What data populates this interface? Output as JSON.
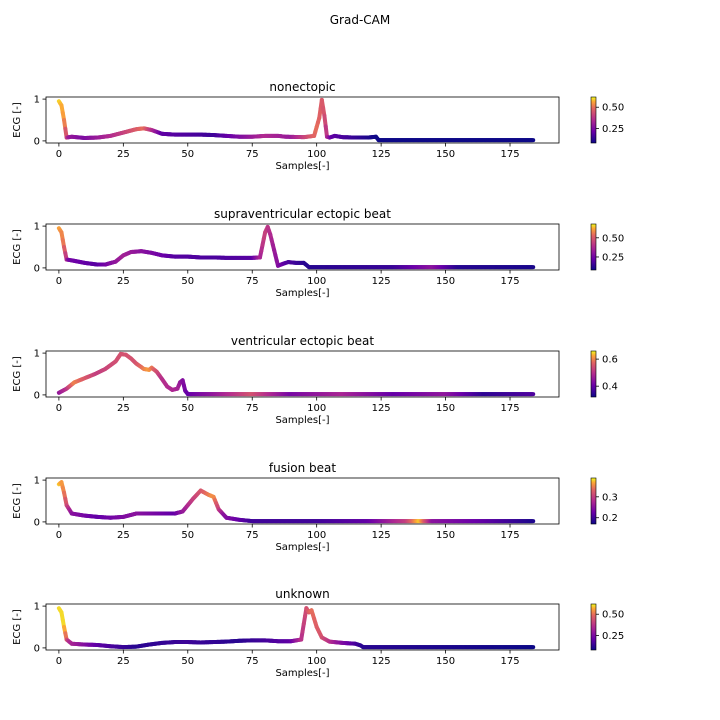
{
  "figure": {
    "suptitle": "Grad-CAM"
  },
  "chart_data": [
    {
      "type": "line",
      "title": "nonectopic",
      "xlabel": "Samples[-]",
      "ylabel": "ECG [-]",
      "xlim": [
        -5,
        194
      ],
      "ylim": [
        -0.05,
        1.05
      ],
      "xticks": [
        0,
        25,
        50,
        75,
        100,
        125,
        150,
        175
      ],
      "yticks": [
        0,
        1
      ],
      "colorbar": {
        "range": [
          0.08,
          0.62
        ],
        "ticks": [
          0.25,
          0.5
        ],
        "labels": [
          "0.25",
          "0.50"
        ]
      },
      "points": [
        [
          0,
          0.95
        ],
        [
          1,
          0.85
        ],
        [
          2,
          0.5
        ],
        [
          3,
          0.08
        ],
        [
          5,
          0.1
        ],
        [
          10,
          0.07
        ],
        [
          15,
          0.08
        ],
        [
          20,
          0.12
        ],
        [
          25,
          0.2
        ],
        [
          30,
          0.28
        ],
        [
          33,
          0.3
        ],
        [
          36,
          0.26
        ],
        [
          40,
          0.17
        ],
        [
          45,
          0.15
        ],
        [
          50,
          0.15
        ],
        [
          55,
          0.15
        ],
        [
          60,
          0.14
        ],
        [
          65,
          0.12
        ],
        [
          70,
          0.1
        ],
        [
          75,
          0.1
        ],
        [
          80,
          0.12
        ],
        [
          85,
          0.12
        ],
        [
          88,
          0.1
        ],
        [
          95,
          0.09
        ],
        [
          99,
          0.12
        ],
        [
          101,
          0.55
        ],
        [
          102,
          0.98
        ],
        [
          103,
          0.6
        ],
        [
          104,
          0.1
        ],
        [
          105,
          0.08
        ],
        [
          107,
          0.12
        ],
        [
          110,
          0.09
        ],
        [
          115,
          0.08
        ],
        [
          120,
          0.08
        ],
        [
          123,
          0.1
        ],
        [
          124,
          0.02
        ],
        [
          184,
          0.02
        ]
      ],
      "attribution": [
        [
          0,
          0.6
        ],
        [
          2,
          0.55
        ],
        [
          4,
          0.3
        ],
        [
          10,
          0.25
        ],
        [
          25,
          0.4
        ],
        [
          33,
          0.5
        ],
        [
          40,
          0.2
        ],
        [
          60,
          0.15
        ],
        [
          80,
          0.35
        ],
        [
          90,
          0.3
        ],
        [
          100,
          0.5
        ],
        [
          103,
          0.45
        ],
        [
          106,
          0.2
        ],
        [
          118,
          0.12
        ],
        [
          124,
          0.08
        ],
        [
          184,
          0.08
        ]
      ]
    },
    {
      "type": "line",
      "title": "supraventricular ectopic beat",
      "xlabel": "Samples[-]",
      "ylabel": "ECG [-]",
      "xlim": [
        -5,
        194
      ],
      "ylim": [
        -0.05,
        1.05
      ],
      "xticks": [
        0,
        25,
        50,
        75,
        100,
        125,
        150,
        175
      ],
      "yticks": [
        0,
        1
      ],
      "colorbar": {
        "range": [
          0.08,
          0.68
        ],
        "ticks": [
          0.25,
          0.5
        ],
        "labels": [
          "0.25",
          "0.50"
        ]
      },
      "points": [
        [
          0,
          0.95
        ],
        [
          1,
          0.85
        ],
        [
          2,
          0.5
        ],
        [
          3,
          0.2
        ],
        [
          5,
          0.18
        ],
        [
          10,
          0.12
        ],
        [
          15,
          0.08
        ],
        [
          18,
          0.08
        ],
        [
          22,
          0.15
        ],
        [
          25,
          0.3
        ],
        [
          28,
          0.38
        ],
        [
          32,
          0.4
        ],
        [
          36,
          0.36
        ],
        [
          40,
          0.3
        ],
        [
          45,
          0.27
        ],
        [
          50,
          0.27
        ],
        [
          55,
          0.25
        ],
        [
          60,
          0.25
        ],
        [
          65,
          0.24
        ],
        [
          70,
          0.24
        ],
        [
          75,
          0.24
        ],
        [
          78,
          0.25
        ],
        [
          80,
          0.85
        ],
        [
          81,
          0.98
        ],
        [
          82,
          0.8
        ],
        [
          84,
          0.3
        ],
        [
          85,
          0.05
        ],
        [
          87,
          0.1
        ],
        [
          89,
          0.14
        ],
        [
          92,
          0.12
        ],
        [
          95,
          0.12
        ],
        [
          97,
          0.02
        ],
        [
          184,
          0.02
        ]
      ],
      "attribution": [
        [
          0,
          0.62
        ],
        [
          2,
          0.55
        ],
        [
          4,
          0.25
        ],
        [
          15,
          0.2
        ],
        [
          25,
          0.35
        ],
        [
          32,
          0.3
        ],
        [
          45,
          0.2
        ],
        [
          60,
          0.18
        ],
        [
          75,
          0.2
        ],
        [
          80,
          0.45
        ],
        [
          83,
          0.35
        ],
        [
          88,
          0.2
        ],
        [
          96,
          0.12
        ],
        [
          130,
          0.15
        ],
        [
          145,
          0.3
        ],
        [
          155,
          0.12
        ],
        [
          184,
          0.1
        ]
      ]
    },
    {
      "type": "line",
      "title": "ventricular ectopic beat",
      "xlabel": "Samples[-]",
      "ylabel": "ECG [-]",
      "xlim": [
        -5,
        194
      ],
      "ylim": [
        -0.05,
        1.05
      ],
      "xticks": [
        0,
        25,
        50,
        75,
        100,
        125,
        150,
        175
      ],
      "yticks": [
        0,
        1
      ],
      "colorbar": {
        "range": [
          0.32,
          0.66
        ],
        "ticks": [
          0.4,
          0.6
        ],
        "labels": [
          "0.4",
          "0.6"
        ]
      },
      "points": [
        [
          0,
          0.05
        ],
        [
          3,
          0.15
        ],
        [
          6,
          0.3
        ],
        [
          10,
          0.4
        ],
        [
          14,
          0.5
        ],
        [
          18,
          0.62
        ],
        [
          22,
          0.8
        ],
        [
          24,
          0.98
        ],
        [
          26,
          0.96
        ],
        [
          28,
          0.87
        ],
        [
          30,
          0.75
        ],
        [
          33,
          0.62
        ],
        [
          35,
          0.6
        ],
        [
          36,
          0.65
        ],
        [
          38,
          0.55
        ],
        [
          40,
          0.38
        ],
        [
          42,
          0.2
        ],
        [
          44,
          0.12
        ],
        [
          46,
          0.15
        ],
        [
          47,
          0.3
        ],
        [
          48,
          0.35
        ],
        [
          49,
          0.1
        ],
        [
          50,
          0.02
        ],
        [
          184,
          0.02
        ]
      ],
      "attribution": [
        [
          0,
          0.45
        ],
        [
          3,
          0.5
        ],
        [
          6,
          0.6
        ],
        [
          15,
          0.52
        ],
        [
          24,
          0.55
        ],
        [
          30,
          0.55
        ],
        [
          35,
          0.62
        ],
        [
          40,
          0.5
        ],
        [
          46,
          0.48
        ],
        [
          50,
          0.4
        ],
        [
          60,
          0.45
        ],
        [
          75,
          0.55
        ],
        [
          90,
          0.42
        ],
        [
          110,
          0.48
        ],
        [
          130,
          0.4
        ],
        [
          150,
          0.45
        ],
        [
          165,
          0.35
        ],
        [
          184,
          0.38
        ]
      ]
    },
    {
      "type": "line",
      "title": "fusion beat",
      "xlabel": "Samples[-]",
      "ylabel": "ECG [-]",
      "xlim": [
        -5,
        194
      ],
      "ylim": [
        -0.05,
        1.05
      ],
      "xticks": [
        0,
        25,
        50,
        75,
        100,
        125,
        150,
        175
      ],
      "yticks": [
        0,
        1
      ],
      "colorbar": {
        "range": [
          0.17,
          0.39
        ],
        "ticks": [
          0.2,
          0.3
        ],
        "labels": [
          "0.2",
          "0.3"
        ]
      },
      "points": [
        [
          0,
          0.9
        ],
        [
          1,
          0.95
        ],
        [
          2,
          0.7
        ],
        [
          3,
          0.4
        ],
        [
          5,
          0.2
        ],
        [
          10,
          0.15
        ],
        [
          15,
          0.12
        ],
        [
          20,
          0.1
        ],
        [
          25,
          0.12
        ],
        [
          30,
          0.2
        ],
        [
          35,
          0.2
        ],
        [
          40,
          0.2
        ],
        [
          45,
          0.2
        ],
        [
          48,
          0.25
        ],
        [
          52,
          0.55
        ],
        [
          55,
          0.75
        ],
        [
          58,
          0.65
        ],
        [
          60,
          0.6
        ],
        [
          62,
          0.3
        ],
        [
          65,
          0.1
        ],
        [
          70,
          0.05
        ],
        [
          75,
          0.02
        ],
        [
          184,
          0.02
        ]
      ],
      "attribution": [
        [
          0,
          0.38
        ],
        [
          2,
          0.35
        ],
        [
          5,
          0.25
        ],
        [
          15,
          0.22
        ],
        [
          30,
          0.25
        ],
        [
          45,
          0.22
        ],
        [
          52,
          0.3
        ],
        [
          55,
          0.32
        ],
        [
          60,
          0.36
        ],
        [
          64,
          0.25
        ],
        [
          75,
          0.2
        ],
        [
          100,
          0.2
        ],
        [
          120,
          0.22
        ],
        [
          135,
          0.3
        ],
        [
          140,
          0.38
        ],
        [
          145,
          0.25
        ],
        [
          165,
          0.22
        ],
        [
          184,
          0.18
        ]
      ]
    },
    {
      "type": "line",
      "title": "unknown",
      "xlabel": "Samples[-]",
      "ylabel": "ECG [-]",
      "xlim": [
        -5,
        194
      ],
      "ylim": [
        -0.05,
        1.05
      ],
      "xticks": [
        0,
        25,
        50,
        75,
        100,
        125,
        150,
        175
      ],
      "yticks": [
        0,
        1
      ],
      "colorbar": {
        "range": [
          0.08,
          0.62
        ],
        "ticks": [
          0.25,
          0.5
        ],
        "labels": [
          "0.25",
          "0.50"
        ]
      },
      "points": [
        [
          0,
          0.95
        ],
        [
          1,
          0.85
        ],
        [
          2,
          0.5
        ],
        [
          3,
          0.2
        ],
        [
          5,
          0.1
        ],
        [
          10,
          0.08
        ],
        [
          15,
          0.07
        ],
        [
          20,
          0.04
        ],
        [
          25,
          0.02
        ],
        [
          30,
          0.03
        ],
        [
          35,
          0.08
        ],
        [
          40,
          0.12
        ],
        [
          45,
          0.14
        ],
        [
          50,
          0.14
        ],
        [
          55,
          0.13
        ],
        [
          60,
          0.14
        ],
        [
          65,
          0.15
        ],
        [
          70,
          0.17
        ],
        [
          75,
          0.18
        ],
        [
          80,
          0.18
        ],
        [
          85,
          0.16
        ],
        [
          90,
          0.16
        ],
        [
          94,
          0.2
        ],
        [
          96,
          0.95
        ],
        [
          97,
          0.85
        ],
        [
          98,
          0.9
        ],
        [
          100,
          0.5
        ],
        [
          102,
          0.25
        ],
        [
          105,
          0.15
        ],
        [
          110,
          0.12
        ],
        [
          115,
          0.1
        ],
        [
          117,
          0.06
        ],
        [
          118,
          0.02
        ],
        [
          184,
          0.02
        ]
      ],
      "attribution": [
        [
          0,
          0.6
        ],
        [
          2,
          0.6
        ],
        [
          4,
          0.35
        ],
        [
          15,
          0.2
        ],
        [
          30,
          0.12
        ],
        [
          50,
          0.15
        ],
        [
          70,
          0.12
        ],
        [
          90,
          0.2
        ],
        [
          95,
          0.4
        ],
        [
          98,
          0.5
        ],
        [
          102,
          0.45
        ],
        [
          108,
          0.3
        ],
        [
          118,
          0.12
        ],
        [
          150,
          0.1
        ],
        [
          184,
          0.08
        ]
      ]
    }
  ]
}
